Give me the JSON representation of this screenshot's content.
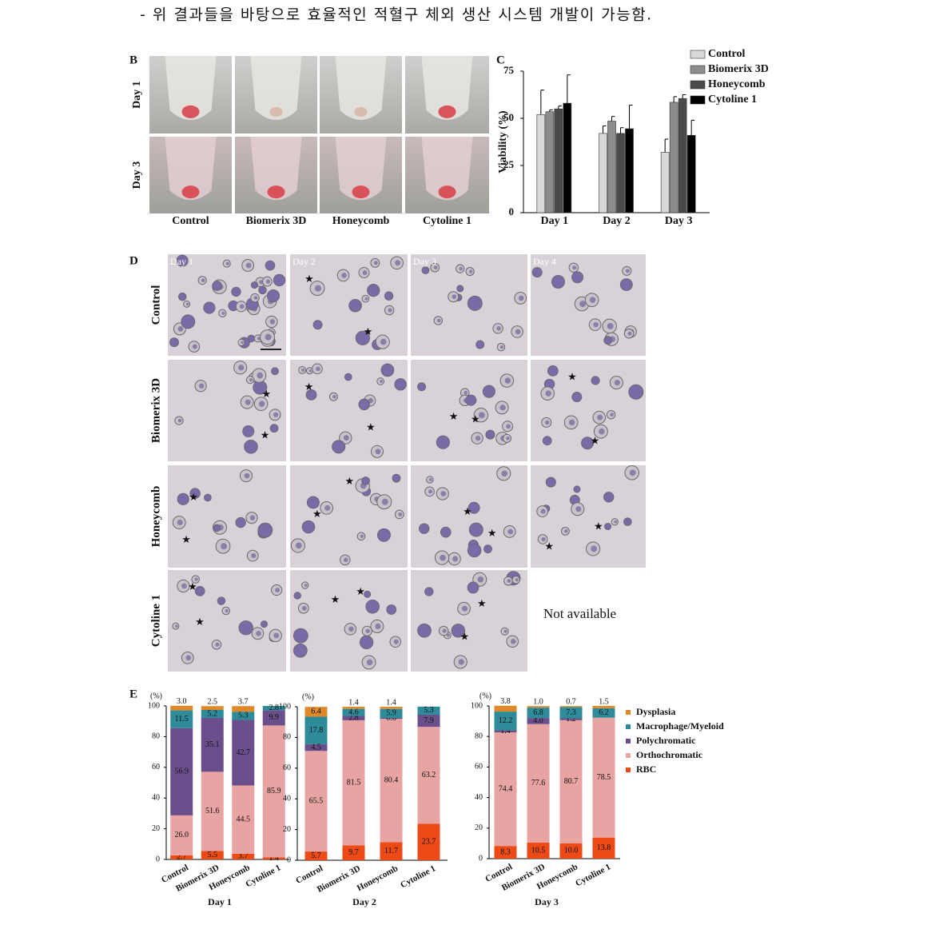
{
  "intro_text": "- 위 결과들을 바탕으로 효율적인 적혈구 체외 생산 시스템 개발이 가능함.",
  "panel_b": {
    "letter": "B",
    "rows": [
      "Day 1",
      "Day 3"
    ],
    "columns": [
      "Control",
      "Biomerix 3D",
      "Honeycomb",
      "Cytoline 1"
    ]
  },
  "panel_c": {
    "letter": "C",
    "chart": {
      "type": "bar",
      "y_label": "Viability (%)",
      "categories": [
        "Day 1",
        "Day 2",
        "Day 3"
      ],
      "ylim": [
        0,
        75
      ],
      "yticks": [
        0,
        25,
        50,
        75
      ],
      "series": [
        {
          "name": "Control",
          "color": "#d9d9d9",
          "values": [
            52,
            42,
            32
          ],
          "errors": [
            13,
            4,
            7
          ]
        },
        {
          "name": "Biomerix 3D",
          "color": "#8c8c8c",
          "values": [
            53.5,
            48.5,
            58.5
          ],
          "errors": [
            1,
            2.5,
            3
          ]
        },
        {
          "name": "Honeycomb",
          "color": "#4a4a4a",
          "values": [
            55,
            42,
            60.5
          ],
          "errors": [
            1.5,
            3,
            2
          ]
        },
        {
          "name": "Cytoline 1",
          "color": "#000000",
          "values": [
            58,
            44.5,
            41
          ],
          "errors": [
            15,
            12.5,
            8
          ]
        }
      ]
    }
  },
  "panel_d": {
    "letter": "D",
    "rows": [
      "Control",
      "Biomerix 3D",
      "Honeycomb",
      "Cytoline 1"
    ],
    "columns": [
      "Day 1",
      "Day 2",
      "Day 3",
      "Day 4"
    ],
    "missing_text": "Not available"
  },
  "panel_e": {
    "letter": "E",
    "legend": [
      {
        "name": "Dysplasia",
        "color": "#e0892b"
      },
      {
        "name": "Macrophage/Myeloid",
        "color": "#2e8b9a"
      },
      {
        "name": "Polychromatic",
        "color": "#6a4f8c"
      },
      {
        "name": "Orthochromatic",
        "color": "#e8a3a3"
      },
      {
        "name": "RBC",
        "color": "#ec4a16"
      }
    ],
    "charts": [
      {
        "type": "stacked_bar",
        "x_label": "Day 1",
        "y_label": "(%)",
        "categories": [
          "Control",
          "Biomerix 3D",
          "Honeycomb",
          "Cytoline 1"
        ],
        "ylim": [
          0,
          100
        ],
        "yticks": [
          0,
          20,
          40,
          60,
          80,
          100
        ],
        "series": [
          {
            "values": [
              3.0,
              2.5,
              3.7,
              null
            ],
            "value_labels": [
              "3.0",
              "2.5",
              "3.7",
              null
            ]
          },
          {
            "values": [
              11.5,
              5.2,
              5.3,
              2.8
            ],
            "value_labels": [
              "11.5",
              "5.2",
              "5.3",
              "2.8"
            ]
          },
          {
            "values": [
              56.9,
              35.1,
              42.7,
              9.9
            ],
            "value_labels": [
              "56.9",
              "35.1",
              "42.7",
              "9.9"
            ]
          },
          {
            "values": [
              26.0,
              51.6,
              44.5,
              85.9
            ],
            "value_labels": [
              "26.0",
              "51.6",
              "44.5",
              "85.9"
            ]
          },
          {
            "values": [
              2.7,
              5.5,
              3.7,
              1.4
            ],
            "value_labels": [
              "2.7",
              "5.5",
              "3.7",
              "1.4"
            ]
          }
        ]
      },
      {
        "type": "stacked_bar",
        "x_label": "Day 2",
        "y_label": "(%)",
        "categories": [
          "Control",
          "Biomerix 3D",
          "Honeycomb",
          "Cytoline 1"
        ],
        "ylim": [
          0,
          100
        ],
        "yticks": [
          0,
          20,
          40,
          60,
          80,
          100
        ],
        "series": [
          {
            "values": [
              6.4,
              1.4,
              1.4,
              null
            ],
            "value_labels": [
              "6.4",
              "1.4",
              "1.4",
              null
            ]
          },
          {
            "values": [
              17.8,
              4.6,
              5.9,
              5.3
            ],
            "value_labels": [
              "17.8",
              "4.6",
              "5.9",
              "5.3"
            ]
          },
          {
            "values": [
              4.5,
              2.8,
              0.6,
              7.9
            ],
            "value_labels": [
              "4.5",
              "2.8",
              "0.6",
              "7.9"
            ]
          },
          {
            "values": [
              65.5,
              81.5,
              80.4,
              63.2
            ],
            "value_labels": [
              "65.5",
              "81.5",
              "80.4",
              "63.2"
            ]
          },
          {
            "values": [
              5.7,
              9.7,
              11.7,
              23.7
            ],
            "value_labels": [
              "5.7",
              "9.7",
              "11.7",
              "23.7"
            ]
          }
        ]
      },
      {
        "type": "stacked_bar",
        "x_label": "Day 3",
        "y_label": "(%)",
        "categories": [
          "Control",
          "Biomerix 3D",
          "Honeycomb",
          "Cytoline 1"
        ],
        "ylim": [
          0,
          100
        ],
        "yticks": [
          0,
          20,
          40,
          60,
          80,
          100
        ],
        "series": [
          {
            "values": [
              3.8,
              1.0,
              0.7,
              1.5
            ],
            "value_labels": [
              "3.8",
              "1.0",
              "0.7",
              "1.5"
            ]
          },
          {
            "values": [
              12.2,
              6.8,
              7.3,
              6.2
            ],
            "value_labels": [
              "12.2",
              "6.8",
              "7.3",
              "6.2"
            ]
          },
          {
            "values": [
              1.4,
              4.0,
              1.2,
              null
            ],
            "value_labels": [
              "1.4",
              "4.0",
              "1.2",
              null
            ]
          },
          {
            "values": [
              74.4,
              77.6,
              80.7,
              78.5
            ],
            "value_labels": [
              "74.4",
              "77.6",
              "80.7",
              "78.5"
            ]
          },
          {
            "values": [
              8.3,
              10.5,
              10.0,
              13.8
            ],
            "value_labels": [
              "8.3",
              "10.5",
              "10.0",
              "13.8"
            ]
          }
        ]
      }
    ]
  }
}
